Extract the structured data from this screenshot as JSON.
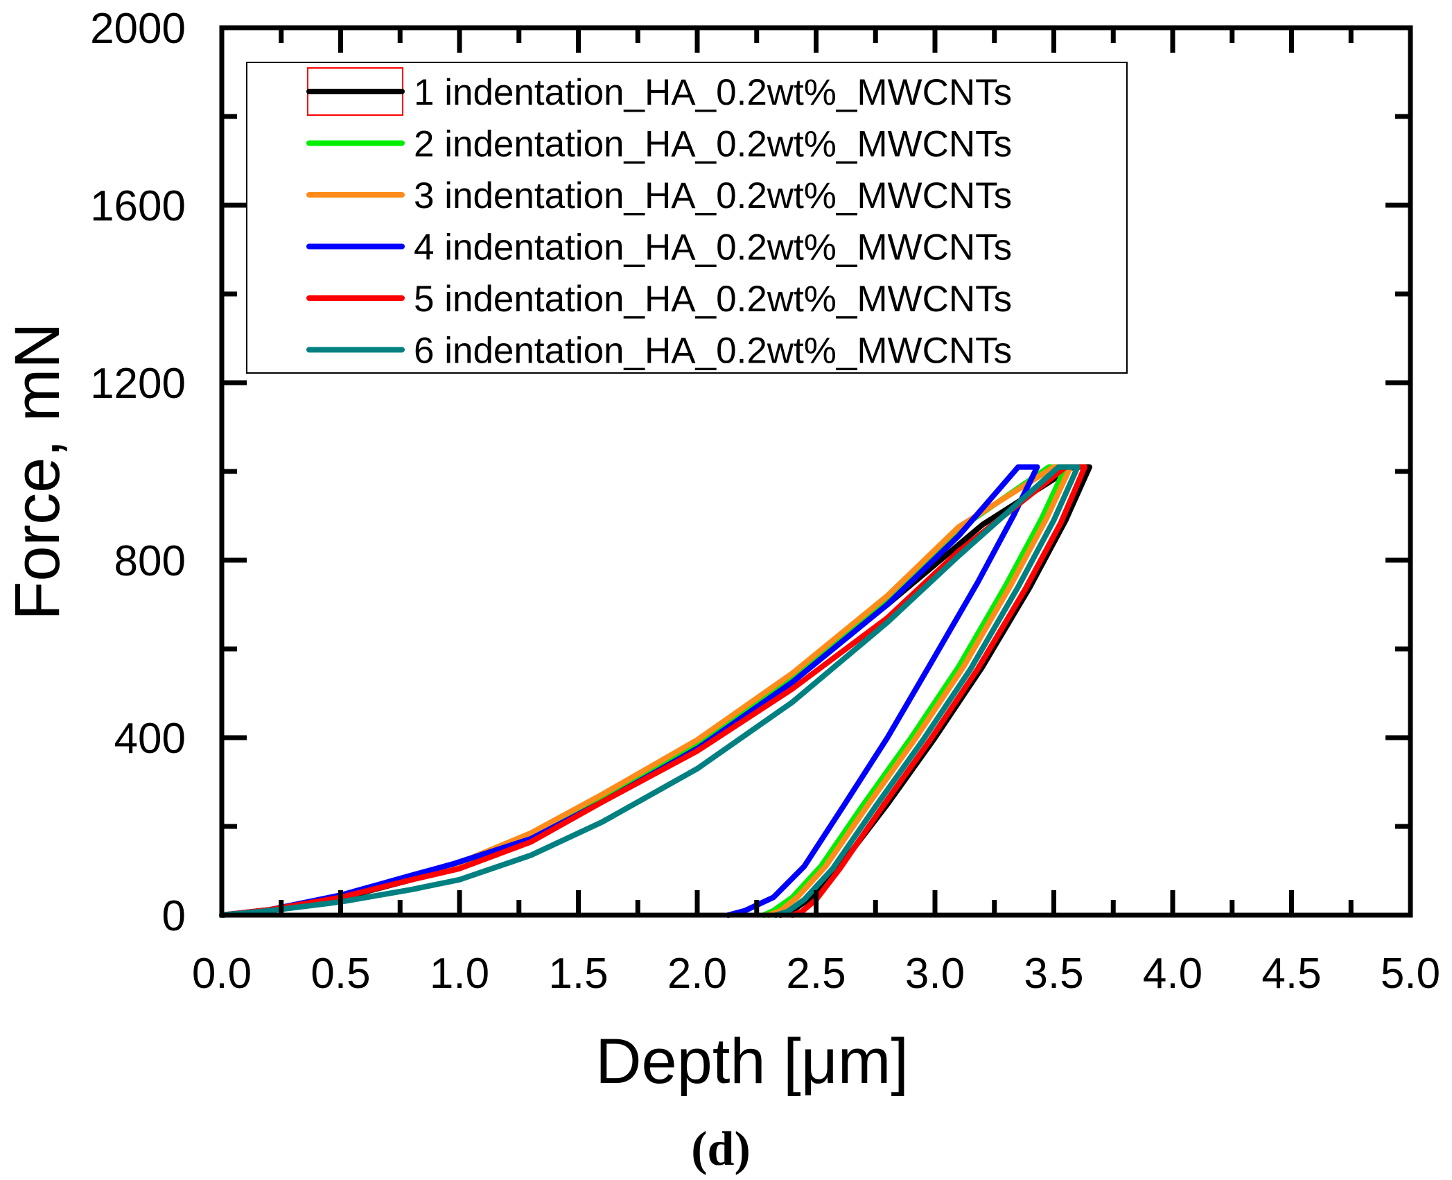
{
  "chart_data": {
    "type": "line",
    "title": "",
    "xlabel": "Depth [μm]",
    "ylabel": "Force, mN",
    "xlim": [
      0.0,
      5.0
    ],
    "ylim": [
      0,
      2000
    ],
    "x_ticks": [
      "0.0",
      "0.5",
      "1.0",
      "1.5",
      "2.0",
      "2.5",
      "3.0",
      "3.5",
      "4.0",
      "4.5",
      "5.0"
    ],
    "y_ticks": [
      "0",
      "400",
      "800",
      "1200",
      "1600",
      "2000"
    ],
    "grid": false,
    "legend_position": "top-left",
    "panel_label": "(d)",
    "series": [
      {
        "name": "1 indentation_HA_0.2wt%_MWCNTs",
        "color": "#000000",
        "x": [
          0.0,
          0.2,
          0.5,
          0.8,
          1.0,
          1.3,
          1.6,
          2.0,
          2.4,
          2.8,
          3.2,
          3.58,
          3.65,
          3.55,
          3.4,
          3.2,
          3.0,
          2.8,
          2.6,
          2.48,
          2.4,
          2.35
        ],
        "y": [
          0,
          12,
          38,
          80,
          110,
          175,
          260,
          380,
          530,
          700,
          880,
          1010,
          1010,
          890,
          740,
          560,
          400,
          250,
          110,
          40,
          10,
          0
        ]
      },
      {
        "name": "2 indentation_HA_0.2wt%_MWCNTs",
        "color": "#00ee00",
        "x": [
          0.0,
          0.2,
          0.5,
          0.8,
          1.0,
          1.3,
          1.6,
          2.0,
          2.4,
          2.8,
          3.1,
          3.48,
          3.55,
          3.45,
          3.3,
          3.1,
          2.9,
          2.7,
          2.52,
          2.4,
          2.32,
          2.28
        ],
        "y": [
          0,
          12,
          40,
          82,
          115,
          180,
          268,
          390,
          540,
          715,
          870,
          1010,
          1010,
          895,
          745,
          560,
          400,
          250,
          110,
          40,
          10,
          0
        ]
      },
      {
        "name": "3 indentation_HA_0.2wt%_MWCNTs",
        "color": "#ff8c1a",
        "x": [
          0.0,
          0.2,
          0.5,
          0.8,
          1.0,
          1.3,
          1.6,
          2.0,
          2.4,
          2.8,
          3.1,
          3.5,
          3.57,
          3.47,
          3.32,
          3.12,
          2.92,
          2.72,
          2.54,
          2.42,
          2.35,
          2.3
        ],
        "y": [
          0,
          12,
          40,
          84,
          118,
          185,
          272,
          395,
          545,
          720,
          875,
          1010,
          1010,
          895,
          745,
          560,
          400,
          250,
          110,
          40,
          10,
          0
        ]
      },
      {
        "name": "4 indentation_HA_0.2wt%_MWCNTs",
        "color": "#0000ff",
        "x": [
          0.0,
          0.2,
          0.5,
          0.8,
          0.97,
          1.3,
          1.6,
          2.0,
          2.4,
          2.8,
          3.1,
          3.35,
          3.43,
          3.33,
          3.18,
          2.98,
          2.8,
          2.62,
          2.45,
          2.32,
          2.2,
          2.13
        ],
        "y": [
          0,
          12,
          45,
          90,
          115,
          172,
          255,
          375,
          525,
          700,
          855,
          1010,
          1010,
          900,
          750,
          565,
          400,
          250,
          110,
          40,
          10,
          0
        ]
      },
      {
        "name": "5 indentation_HA_0.2wt%_MWCNTs",
        "color": "#ff0000",
        "x": [
          0.0,
          0.2,
          0.5,
          0.8,
          1.0,
          1.3,
          1.6,
          2.0,
          2.4,
          2.8,
          3.1,
          3.55,
          3.63,
          3.53,
          3.38,
          3.18,
          2.98,
          2.78,
          2.6,
          2.5,
          2.44,
          2.4
        ],
        "y": [
          0,
          12,
          40,
          80,
          105,
          165,
          255,
          370,
          510,
          670,
          820,
          1010,
          1010,
          885,
          735,
          555,
          395,
          245,
          105,
          35,
          8,
          0
        ]
      },
      {
        "name": "6 indentation_HA_0.2wt%_MWCNTs",
        "color": "#008080",
        "x": [
          0.0,
          0.2,
          0.5,
          0.8,
          1.0,
          1.3,
          1.6,
          2.0,
          2.4,
          2.8,
          3.1,
          3.52,
          3.6,
          3.5,
          3.35,
          3.15,
          2.95,
          2.75,
          2.57,
          2.45,
          2.38,
          2.33
        ],
        "y": [
          0,
          10,
          30,
          58,
          80,
          135,
          210,
          330,
          480,
          660,
          810,
          1010,
          1010,
          890,
          740,
          555,
          395,
          245,
          105,
          35,
          8,
          0
        ]
      }
    ]
  }
}
